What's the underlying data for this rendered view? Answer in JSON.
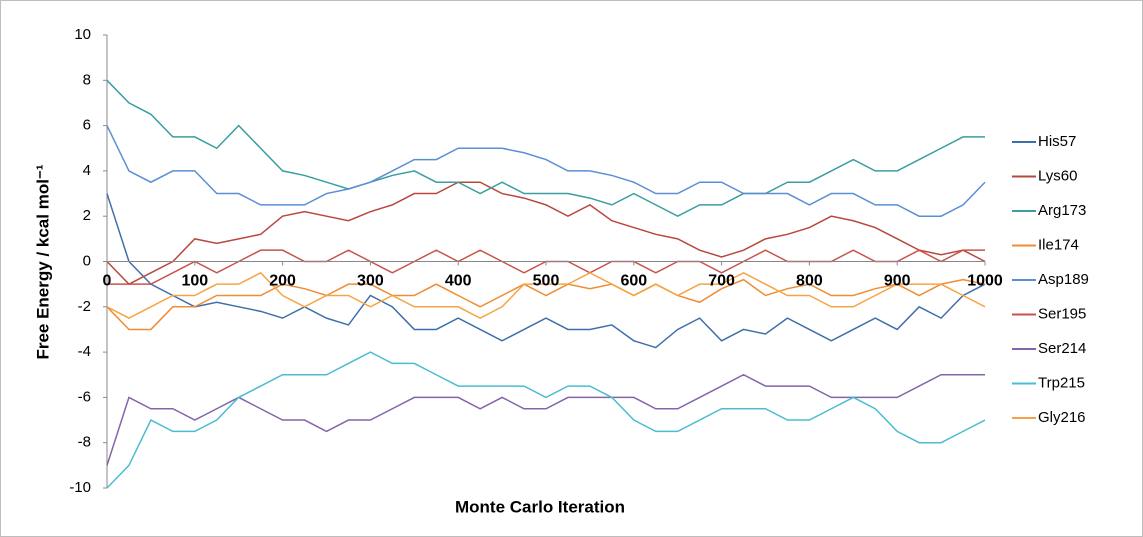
{
  "chart_data": {
    "type": "line",
    "xlabel": "Monte Carlo Iteration",
    "ylabel": "Free Energy / kcal mol⁻¹",
    "x": [
      0,
      25,
      50,
      75,
      100,
      125,
      150,
      175,
      200,
      225,
      250,
      275,
      300,
      325,
      350,
      375,
      400,
      425,
      450,
      475,
      500,
      525,
      550,
      575,
      600,
      625,
      650,
      675,
      700,
      725,
      750,
      775,
      800,
      825,
      850,
      875,
      900,
      925,
      950,
      975,
      1000
    ],
    "xlim": [
      0,
      1000
    ],
    "xticks": [
      0,
      100,
      200,
      300,
      400,
      500,
      600,
      700,
      800,
      900,
      1000
    ],
    "ylim": [
      -10,
      10
    ],
    "yticks": [
      -10,
      -8,
      -6,
      -4,
      -2,
      0,
      2,
      4,
      6,
      8,
      10
    ],
    "grid": false,
    "legend": "right",
    "series": [
      {
        "name": "His57",
        "color": "#3f6fab",
        "values": [
          3,
          0,
          -1,
          -1.5,
          -2,
          -1.8,
          -2,
          -2.2,
          -2.5,
          -2,
          -2.5,
          -2.8,
          -1.5,
          -2,
          -3,
          -3,
          -2.5,
          -3,
          -3.5,
          -3,
          -2.5,
          -3,
          -3,
          -2.8,
          -3.5,
          -3.8,
          -3,
          -2.5,
          -3.5,
          -3,
          -3.2,
          -2.5,
          -3,
          -3.5,
          -3,
          -2.5,
          -3,
          -2,
          -2.5,
          -1.5,
          -1
        ]
      },
      {
        "name": "Lys60",
        "color": "#b8483f",
        "values": [
          0,
          -1,
          -0.5,
          0,
          1,
          0.8,
          1,
          1.2,
          2,
          2.2,
          2,
          1.8,
          2.2,
          2.5,
          3,
          3,
          3.5,
          3.5,
          3,
          2.8,
          2.5,
          2,
          2.5,
          1.8,
          1.5,
          1.2,
          1,
          0.5,
          0.2,
          0.5,
          1,
          1.2,
          1.5,
          2,
          1.8,
          1.5,
          1,
          0.5,
          0.3,
          0.5,
          0
        ]
      },
      {
        "name": "Arg173",
        "color": "#3a9e9f",
        "values": [
          8,
          7,
          6.5,
          5.5,
          5.5,
          5,
          6,
          5,
          4,
          3.8,
          3.5,
          3.2,
          3.5,
          3.8,
          4,
          3.5,
          3.5,
          3,
          3.5,
          3,
          3,
          3,
          2.8,
          2.5,
          3,
          2.5,
          2,
          2.5,
          2.5,
          3,
          3,
          3.5,
          3.5,
          4,
          4.5,
          4,
          4,
          4.5,
          5,
          5.5,
          5.5
        ]
      },
      {
        "name": "Ile174",
        "color": "#ef8c34",
        "values": [
          -2,
          -3,
          -3,
          -2,
          -2,
          -1.5,
          -1.5,
          -1.5,
          -1,
          -1.2,
          -1.5,
          -1,
          -1,
          -1.5,
          -1.5,
          -1,
          -1.5,
          -2,
          -1.5,
          -1,
          -1.5,
          -1,
          -1.2,
          -1,
          -1.5,
          -1,
          -1.5,
          -1.8,
          -1.2,
          -0.8,
          -1.5,
          -1.2,
          -1,
          -1.5,
          -1.5,
          -1.2,
          -1,
          -1.5,
          -1,
          -0.8,
          -1
        ]
      },
      {
        "name": "Asp189",
        "color": "#5a8fd3",
        "values": [
          6,
          4,
          3.5,
          4,
          4,
          3,
          3,
          2.5,
          2.5,
          2.5,
          3,
          3.2,
          3.5,
          4,
          4.5,
          4.5,
          5,
          5,
          5,
          4.8,
          4.5,
          4,
          4,
          3.8,
          3.5,
          3,
          3,
          3.5,
          3.5,
          3,
          3,
          3,
          2.5,
          3,
          3,
          2.5,
          2.5,
          2,
          2,
          2.5,
          3.5
        ]
      },
      {
        "name": "Ser195",
        "color": "#c9534b",
        "values": [
          -1,
          -1,
          -1,
          -0.5,
          0,
          -0.5,
          0,
          0.5,
          0.5,
          0,
          0,
          0.5,
          0,
          -0.5,
          0,
          0.5,
          0,
          0.5,
          0,
          -0.5,
          0,
          0,
          -0.5,
          0,
          0,
          -0.5,
          0,
          0,
          -0.5,
          0,
          0.5,
          0,
          0,
          0,
          0.5,
          0,
          0,
          0.5,
          0,
          0.5,
          0.5
        ]
      },
      {
        "name": "Ser214",
        "color": "#8565a9",
        "values": [
          -9,
          -6,
          -6.5,
          -6.5,
          -7,
          -6.5,
          -6,
          -6.5,
          -7,
          -7,
          -7.5,
          -7,
          -7,
          -6.5,
          -6,
          -6,
          -6,
          -6.5,
          -6,
          -6.5,
          -6.5,
          -6,
          -6,
          -6,
          -6,
          -6.5,
          -6.5,
          -6,
          -5.5,
          -5,
          -5.5,
          -5.5,
          -5.5,
          -6,
          -6,
          -6,
          -6,
          -5.5,
          -5,
          -5,
          -5
        ]
      },
      {
        "name": "Trp215",
        "color": "#4bbdd1",
        "values": [
          -10,
          -9,
          -7,
          -7.5,
          -7.5,
          -7,
          -6,
          -5.5,
          -5,
          -5,
          -5,
          -4.5,
          -4,
          -4.5,
          -4.5,
          -5,
          -5.5,
          -5.5,
          -5.5,
          -5.5,
          -6,
          -5.5,
          -5.5,
          -6,
          -7,
          -7.5,
          -7.5,
          -7,
          -6.5,
          -6.5,
          -6.5,
          -7,
          -7,
          -6.5,
          -6,
          -6.5,
          -7.5,
          -8,
          -8,
          -7.5,
          -7
        ]
      },
      {
        "name": "Gly216",
        "color": "#f6a443",
        "values": [
          -2,
          -2.5,
          -2,
          -1.5,
          -1.5,
          -1,
          -1,
          -0.5,
          -1.5,
          -2,
          -1.5,
          -1.5,
          -2,
          -1.5,
          -2,
          -2,
          -2,
          -2.5,
          -2,
          -1,
          -1,
          -1,
          -0.5,
          -1,
          -1.5,
          -1,
          -1.5,
          -1,
          -1,
          -0.5,
          -1,
          -1.5,
          -1.5,
          -2,
          -2,
          -1.5,
          -1,
          -1,
          -1,
          -1.5,
          -2
        ]
      }
    ]
  }
}
